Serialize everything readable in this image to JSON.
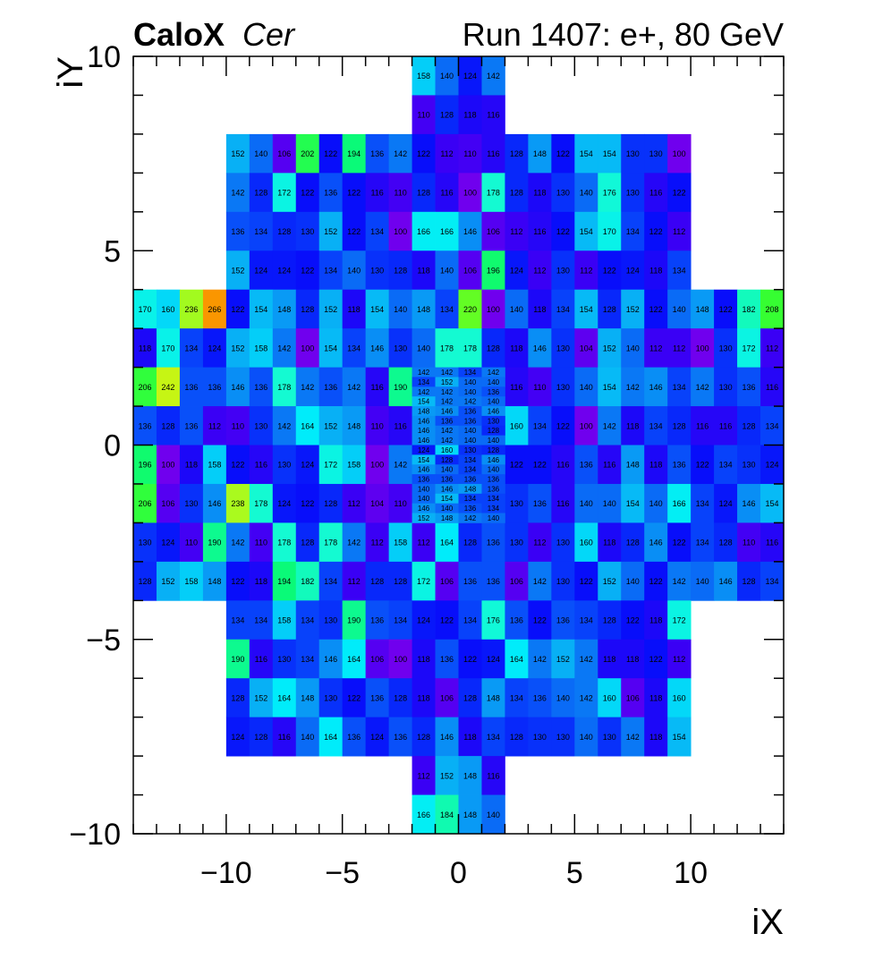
{
  "title": {
    "left_bold": "CaloX",
    "left_italic": "Cer",
    "right": "Run 1407: e+, 80 GeV"
  },
  "chart_data": {
    "type": "heatmap",
    "xlabel": "iX",
    "ylabel": "iY",
    "xlim": [
      -14,
      14
    ],
    "ylim": [
      -10,
      10
    ],
    "x_ticks": [
      -10,
      -5,
      0,
      5,
      10
    ],
    "x_tick_labels": [
      "−10",
      "−5",
      "0",
      "5",
      "10"
    ],
    "y_ticks": [
      -10,
      -5,
      0,
      5,
      10
    ],
    "y_tick_labels": [
      "−10",
      "−5",
      "0",
      "5",
      "10"
    ],
    "colormap": "kRainBow",
    "blocks": [
      {
        "x0": -2,
        "x1": 2,
        "y_top": 10,
        "rows": [
          [
            158,
            140,
            124,
            142
          ],
          [
            110,
            128,
            118,
            116
          ]
        ]
      },
      {
        "x0": -10,
        "x1": 10,
        "y_top": 8,
        "rows": [
          [
            152,
            140,
            106,
            202,
            122,
            194,
            136,
            142,
            122,
            112,
            110,
            116,
            128,
            148,
            122,
            154,
            154,
            130,
            130,
            100
          ],
          [
            142,
            128,
            172,
            122,
            136,
            122,
            116,
            110,
            128,
            116,
            100,
            178,
            128,
            118,
            130,
            140,
            176,
            130,
            116,
            122
          ],
          [
            136,
            134,
            128,
            130,
            152,
            122,
            134,
            100,
            166,
            166,
            146,
            106,
            112,
            116,
            122,
            154,
            170,
            134,
            122,
            112
          ],
          [
            152,
            124,
            124,
            122,
            134,
            140,
            130,
            128,
            118,
            140,
            106,
            196,
            124,
            112,
            130,
            112,
            122,
            124,
            118,
            134
          ]
        ]
      },
      {
        "x0": -14,
        "x1": 14,
        "y_top": 4,
        "rows": [
          [
            170,
            160,
            236,
            266,
            122,
            154,
            148,
            128,
            152,
            118,
            154,
            140,
            148,
            134,
            220,
            100,
            140,
            118,
            134,
            154,
            128,
            152,
            122,
            140,
            148,
            122,
            182,
            208
          ],
          [
            118,
            170,
            134,
            124,
            152,
            158,
            142,
            100,
            154,
            134,
            146,
            130,
            140,
            178,
            178,
            128,
            118,
            146,
            130,
            104,
            152,
            140,
            112,
            112,
            100,
            130,
            172,
            112
          ],
          [
            206,
            242,
            136,
            136,
            146,
            136,
            178,
            142,
            136,
            142,
            116,
            190,
            null,
            null,
            null,
            null,
            116,
            110,
            130,
            140,
            154,
            142,
            146,
            134,
            142,
            130,
            136,
            116
          ],
          [
            136,
            128,
            136,
            112,
            110,
            130,
            142,
            164,
            152,
            148,
            110,
            116,
            null,
            null,
            null,
            null,
            160,
            134,
            122,
            100,
            142,
            118,
            134,
            128,
            116,
            116,
            128,
            134
          ],
          [
            196,
            100,
            118,
            158,
            122,
            116,
            130,
            124,
            172,
            158,
            100,
            142,
            null,
            null,
            null,
            null,
            122,
            122,
            116,
            136,
            116,
            148,
            118,
            136,
            122,
            134,
            130,
            124
          ],
          [
            206,
            106,
            130,
            146,
            238,
            178,
            124,
            122,
            128,
            112,
            104,
            110,
            null,
            null,
            null,
            null,
            130,
            136,
            116,
            140,
            140,
            154,
            140,
            166,
            134,
            124,
            146,
            154
          ],
          [
            130,
            124,
            110,
            190,
            142,
            110,
            178,
            128,
            178,
            142,
            112,
            158,
            112,
            164,
            128,
            136,
            130,
            112,
            130,
            160,
            118,
            128,
            146,
            122,
            134,
            128,
            110,
            116
          ],
          [
            128,
            152,
            158,
            148,
            122,
            118,
            194,
            182,
            134,
            112,
            128,
            128,
            172,
            106,
            136,
            136,
            106,
            142,
            130,
            122,
            152,
            140,
            122,
            142,
            140,
            146,
            128,
            134
          ]
        ]
      },
      {
        "x0": -10,
        "x1": 10,
        "y_top": -4,
        "rows": [
          [
            134,
            134,
            158,
            134,
            130,
            190,
            136,
            134,
            124,
            122,
            134,
            176,
            136,
            122,
            136,
            134,
            128,
            122,
            118,
            172
          ],
          [
            190,
            116,
            130,
            134,
            146,
            164,
            106,
            100,
            118,
            136,
            122,
            124,
            164,
            142,
            152,
            142,
            118,
            118,
            122,
            112
          ],
          [
            128,
            152,
            164,
            148,
            130,
            122,
            136,
            128,
            118,
            106,
            128,
            148,
            134,
            136,
            140,
            142,
            160,
            106,
            118,
            160
          ],
          [
            124,
            128,
            116,
            140,
            164,
            136,
            124,
            136,
            128,
            146,
            118,
            134,
            128,
            130,
            130,
            140,
            130,
            142,
            118,
            154
          ]
        ]
      },
      {
        "x0": -2,
        "x1": 2,
        "y_top": -8,
        "rows": [
          [
            112,
            152,
            148,
            116
          ],
          [
            166,
            184,
            148,
            140
          ]
        ]
      },
      {
        "x0": -2,
        "x1": 2,
        "y_top": 2,
        "row_h": 0.25,
        "rows": [
          [
            142,
            142,
            134,
            142
          ],
          [
            134,
            152,
            140,
            140
          ],
          [
            142,
            142,
            140,
            136
          ],
          [
            154,
            142,
            142,
            140
          ],
          [
            148,
            146,
            136,
            146
          ],
          [
            146,
            136,
            136,
            130
          ],
          [
            146,
            142,
            140,
            128
          ],
          [
            146,
            142,
            140,
            140
          ],
          [
            124,
            160,
            130,
            128
          ],
          [
            154,
            128,
            134,
            146
          ],
          [
            146,
            140,
            134,
            140
          ],
          [
            136,
            136,
            136,
            136
          ],
          [
            140,
            146,
            148,
            136
          ],
          [
            140,
            154,
            134,
            134
          ],
          [
            146,
            140,
            136,
            134
          ],
          [
            152,
            148,
            142,
            140
          ]
        ]
      }
    ]
  }
}
